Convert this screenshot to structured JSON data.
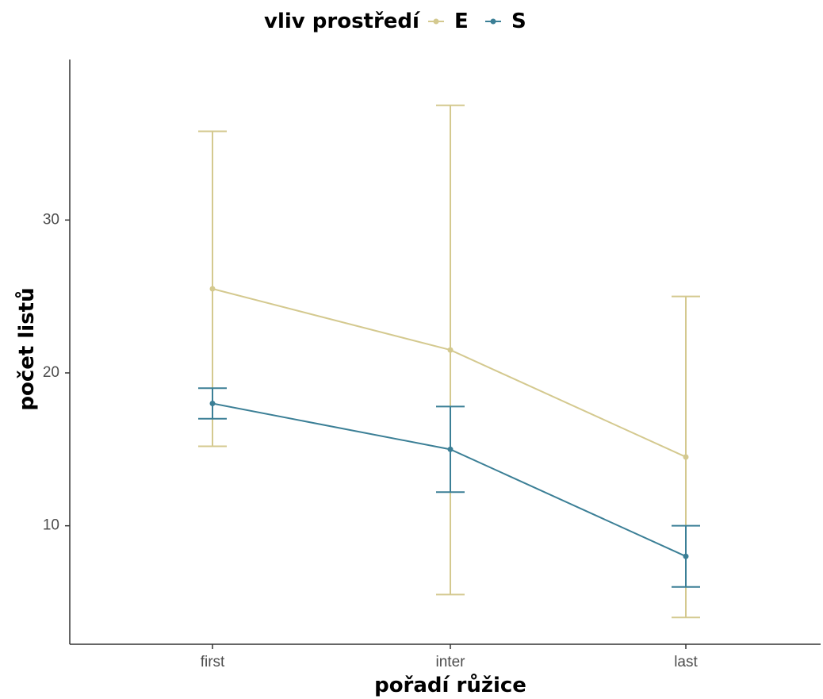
{
  "chart_data": {
    "type": "line",
    "xlabel": "pořadí růžice",
    "ylabel": "počet listů",
    "categories": [
      "first",
      "inter",
      "last"
    ],
    "yticks": [
      10,
      20,
      30
    ],
    "ylim": [
      2.25,
      40.5
    ],
    "grid": false,
    "legend": {
      "title": "vliv prostředí",
      "position": "top"
    },
    "series": [
      {
        "name": "E",
        "color": "#d4c98f",
        "values": [
          25.5,
          21.5,
          14.5
        ],
        "lower": [
          15.2,
          5.5,
          4.0
        ],
        "upper": [
          35.8,
          37.5,
          25.0
        ]
      },
      {
        "name": "S",
        "color": "#3b7f96",
        "values": [
          18.0,
          15.0,
          8.0
        ],
        "lower": [
          17.0,
          12.2,
          6.0
        ],
        "upper": [
          19.0,
          17.8,
          10.0
        ]
      }
    ]
  }
}
